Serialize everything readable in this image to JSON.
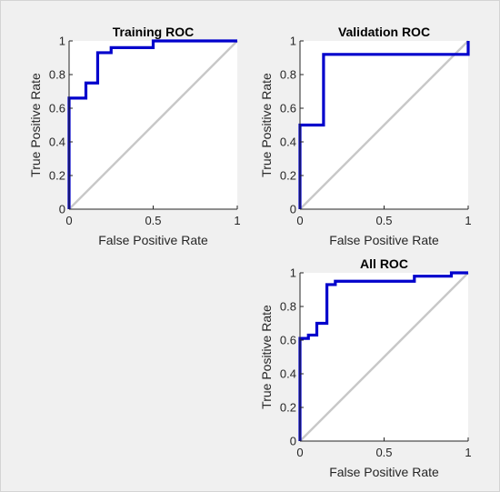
{
  "figure": {
    "background": "#f0f0f0",
    "axes_background": "#ffffff"
  },
  "colors": {
    "roc_curve": "#0000cc",
    "diagonal": "#c8c8c8",
    "axis": "#262626"
  },
  "chart_data": [
    {
      "type": "line",
      "title": "Training ROC",
      "xlabel": "False Positive Rate",
      "ylabel": "True Positive Rate",
      "xlim": [
        0,
        1
      ],
      "ylim": [
        0,
        1
      ],
      "xticks": [
        "0",
        "0.5",
        "1"
      ],
      "yticks": [
        "0",
        "0.2",
        "0.4",
        "0.6",
        "0.8",
        "1"
      ],
      "grid": false,
      "series": [
        {
          "x": [
            0,
            0,
            0.1,
            0.1,
            0.17,
            0.17,
            0.25,
            0.25,
            0.5,
            0.5,
            1
          ],
          "y": [
            0,
            0.66,
            0.66,
            0.75,
            0.75,
            0.93,
            0.93,
            0.96,
            0.96,
            1,
            1
          ]
        }
      ]
    },
    {
      "type": "line",
      "title": "Validation ROC",
      "xlabel": "False Positive Rate",
      "ylabel": "True Positive Rate",
      "xlim": [
        0,
        1
      ],
      "ylim": [
        0,
        1
      ],
      "xticks": [
        "0",
        "0.5",
        "1"
      ],
      "yticks": [
        "0",
        "0.2",
        "0.4",
        "0.6",
        "0.8",
        "1"
      ],
      "grid": false,
      "series": [
        {
          "x": [
            0,
            0,
            0.14,
            0.14,
            1,
            1
          ],
          "y": [
            0,
            0.5,
            0.5,
            0.92,
            0.92,
            1
          ]
        }
      ]
    },
    {
      "type": "line",
      "title": "All ROC",
      "xlabel": "False Positive Rate",
      "ylabel": "True Positive Rate",
      "xlim": [
        0,
        1
      ],
      "ylim": [
        0,
        1
      ],
      "xticks": [
        "0",
        "0.5",
        "1"
      ],
      "yticks": [
        "0",
        "0.2",
        "0.4",
        "0.6",
        "0.8",
        "1"
      ],
      "grid": false,
      "series": [
        {
          "x": [
            0,
            0,
            0.05,
            0.05,
            0.1,
            0.1,
            0.16,
            0.16,
            0.21,
            0.21,
            0.68,
            0.68,
            0.9,
            0.9,
            1
          ],
          "y": [
            0,
            0.61,
            0.61,
            0.63,
            0.63,
            0.7,
            0.7,
            0.93,
            0.93,
            0.95,
            0.95,
            0.98,
            0.98,
            1,
            1
          ]
        }
      ]
    }
  ]
}
